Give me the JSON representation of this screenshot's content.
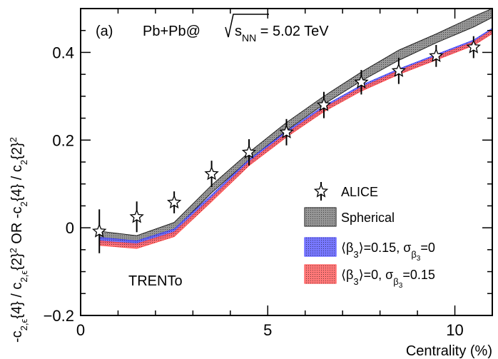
{
  "chart_data": {
    "type": "line",
    "panel_label": "(a)",
    "system": {
      "prefix": "Pb+Pb@",
      "sqrt_s": "s",
      "sub": "NN",
      "energy": " = 5.02 TeV"
    },
    "model_label": "TRENTo",
    "xlabel": "Centrality (%)",
    "ylabel": {
      "p1": "-c",
      "p2": "2,ϵ",
      "p3": "{4} / c",
      "p4": "2,ϵ",
      "p5": "{2}",
      "p6": "2",
      "p7": " OR -c",
      "p8": "2",
      "p9": "{4} / c",
      "p10": "2",
      "p11": "{2}",
      "p12": "2"
    },
    "xlim": [
      0,
      11
    ],
    "ylim": [
      -0.2,
      0.5
    ],
    "xticks": [
      0,
      5,
      10
    ],
    "xtick_labels": [
      "0",
      "5",
      "10"
    ],
    "yticks": [
      -0.2,
      0,
      0.2,
      0.4
    ],
    "ytick_labels": [
      "−0.2",
      "0",
      "0.2",
      "0.4"
    ],
    "x_minor_step": 1,
    "y_minor_step": 0.05,
    "bands": [
      {
        "name": "Spherical",
        "color": "#000000",
        "x": [
          0.5,
          1.5,
          2.5,
          3.5,
          4.5,
          5.5,
          6.5,
          7.5,
          8.5,
          9.5,
          10.5,
          11
        ],
        "lower": [
          -0.025,
          -0.033,
          -0.005,
          0.08,
          0.155,
          0.222,
          0.282,
          0.335,
          0.382,
          0.422,
          0.458,
          0.48
        ],
        "upper": [
          -0.008,
          -0.018,
          0.012,
          0.097,
          0.172,
          0.24,
          0.3,
          0.355,
          0.405,
          0.442,
          0.482,
          0.5
        ]
      },
      {
        "name": "⟨β3⟩=0.15, σβ3=0",
        "color": "#2b2bff",
        "x": [
          0.5,
          1.5,
          2.5,
          3.5,
          4.5,
          5.5,
          6.5,
          7.5,
          8.5,
          9.5,
          10.5,
          11
        ],
        "lower": [
          -0.035,
          -0.042,
          -0.015,
          0.065,
          0.145,
          0.21,
          0.268,
          0.315,
          0.352,
          0.385,
          0.418,
          0.445
        ],
        "upper": [
          -0.022,
          -0.03,
          -0.003,
          0.075,
          0.155,
          0.22,
          0.278,
          0.325,
          0.362,
          0.395,
          0.428,
          0.455
        ]
      },
      {
        "name": "⟨β3⟩=0, σβ3=0.15",
        "color": "#ff2b2b",
        "x": [
          0.5,
          1.5,
          2.5,
          3.5,
          4.5,
          5.5,
          6.5,
          7.5,
          8.5,
          9.5,
          10.5,
          11
        ],
        "lower": [
          -0.04,
          -0.047,
          -0.02,
          0.06,
          0.142,
          0.207,
          0.265,
          0.312,
          0.35,
          0.383,
          0.416,
          0.443
        ],
        "upper": [
          -0.03,
          -0.037,
          -0.01,
          0.068,
          0.15,
          0.215,
          0.273,
          0.32,
          0.358,
          0.391,
          0.424,
          0.451
        ]
      }
    ],
    "points": {
      "name": "ALICE",
      "x": [
        0.5,
        1.5,
        2.5,
        3.5,
        4.5,
        5.5,
        6.5,
        7.5,
        8.5,
        9.5,
        10.5
      ],
      "y": [
        -0.008,
        0.025,
        0.058,
        0.123,
        0.172,
        0.218,
        0.28,
        0.332,
        0.358,
        0.392,
        0.412
      ],
      "err": [
        0.05,
        0.035,
        0.025,
        0.03,
        0.03,
        0.03,
        0.03,
        0.028,
        0.03,
        0.025,
        0.025
      ]
    },
    "legend": [
      {
        "kind": "marker",
        "label": "ALICE"
      },
      {
        "kind": "band",
        "color": "#000000",
        "parts": [
          "Spherical"
        ]
      },
      {
        "kind": "band",
        "color": "#2b2bff",
        "parts": [
          "⟨β",
          "3",
          "⟩=0.15, σ",
          "β",
          "3",
          "=0"
        ]
      },
      {
        "kind": "band",
        "color": "#ff2b2b",
        "parts": [
          "⟨β",
          "3",
          "⟩=0, σ",
          "β",
          "3",
          "=0.15"
        ]
      }
    ]
  }
}
